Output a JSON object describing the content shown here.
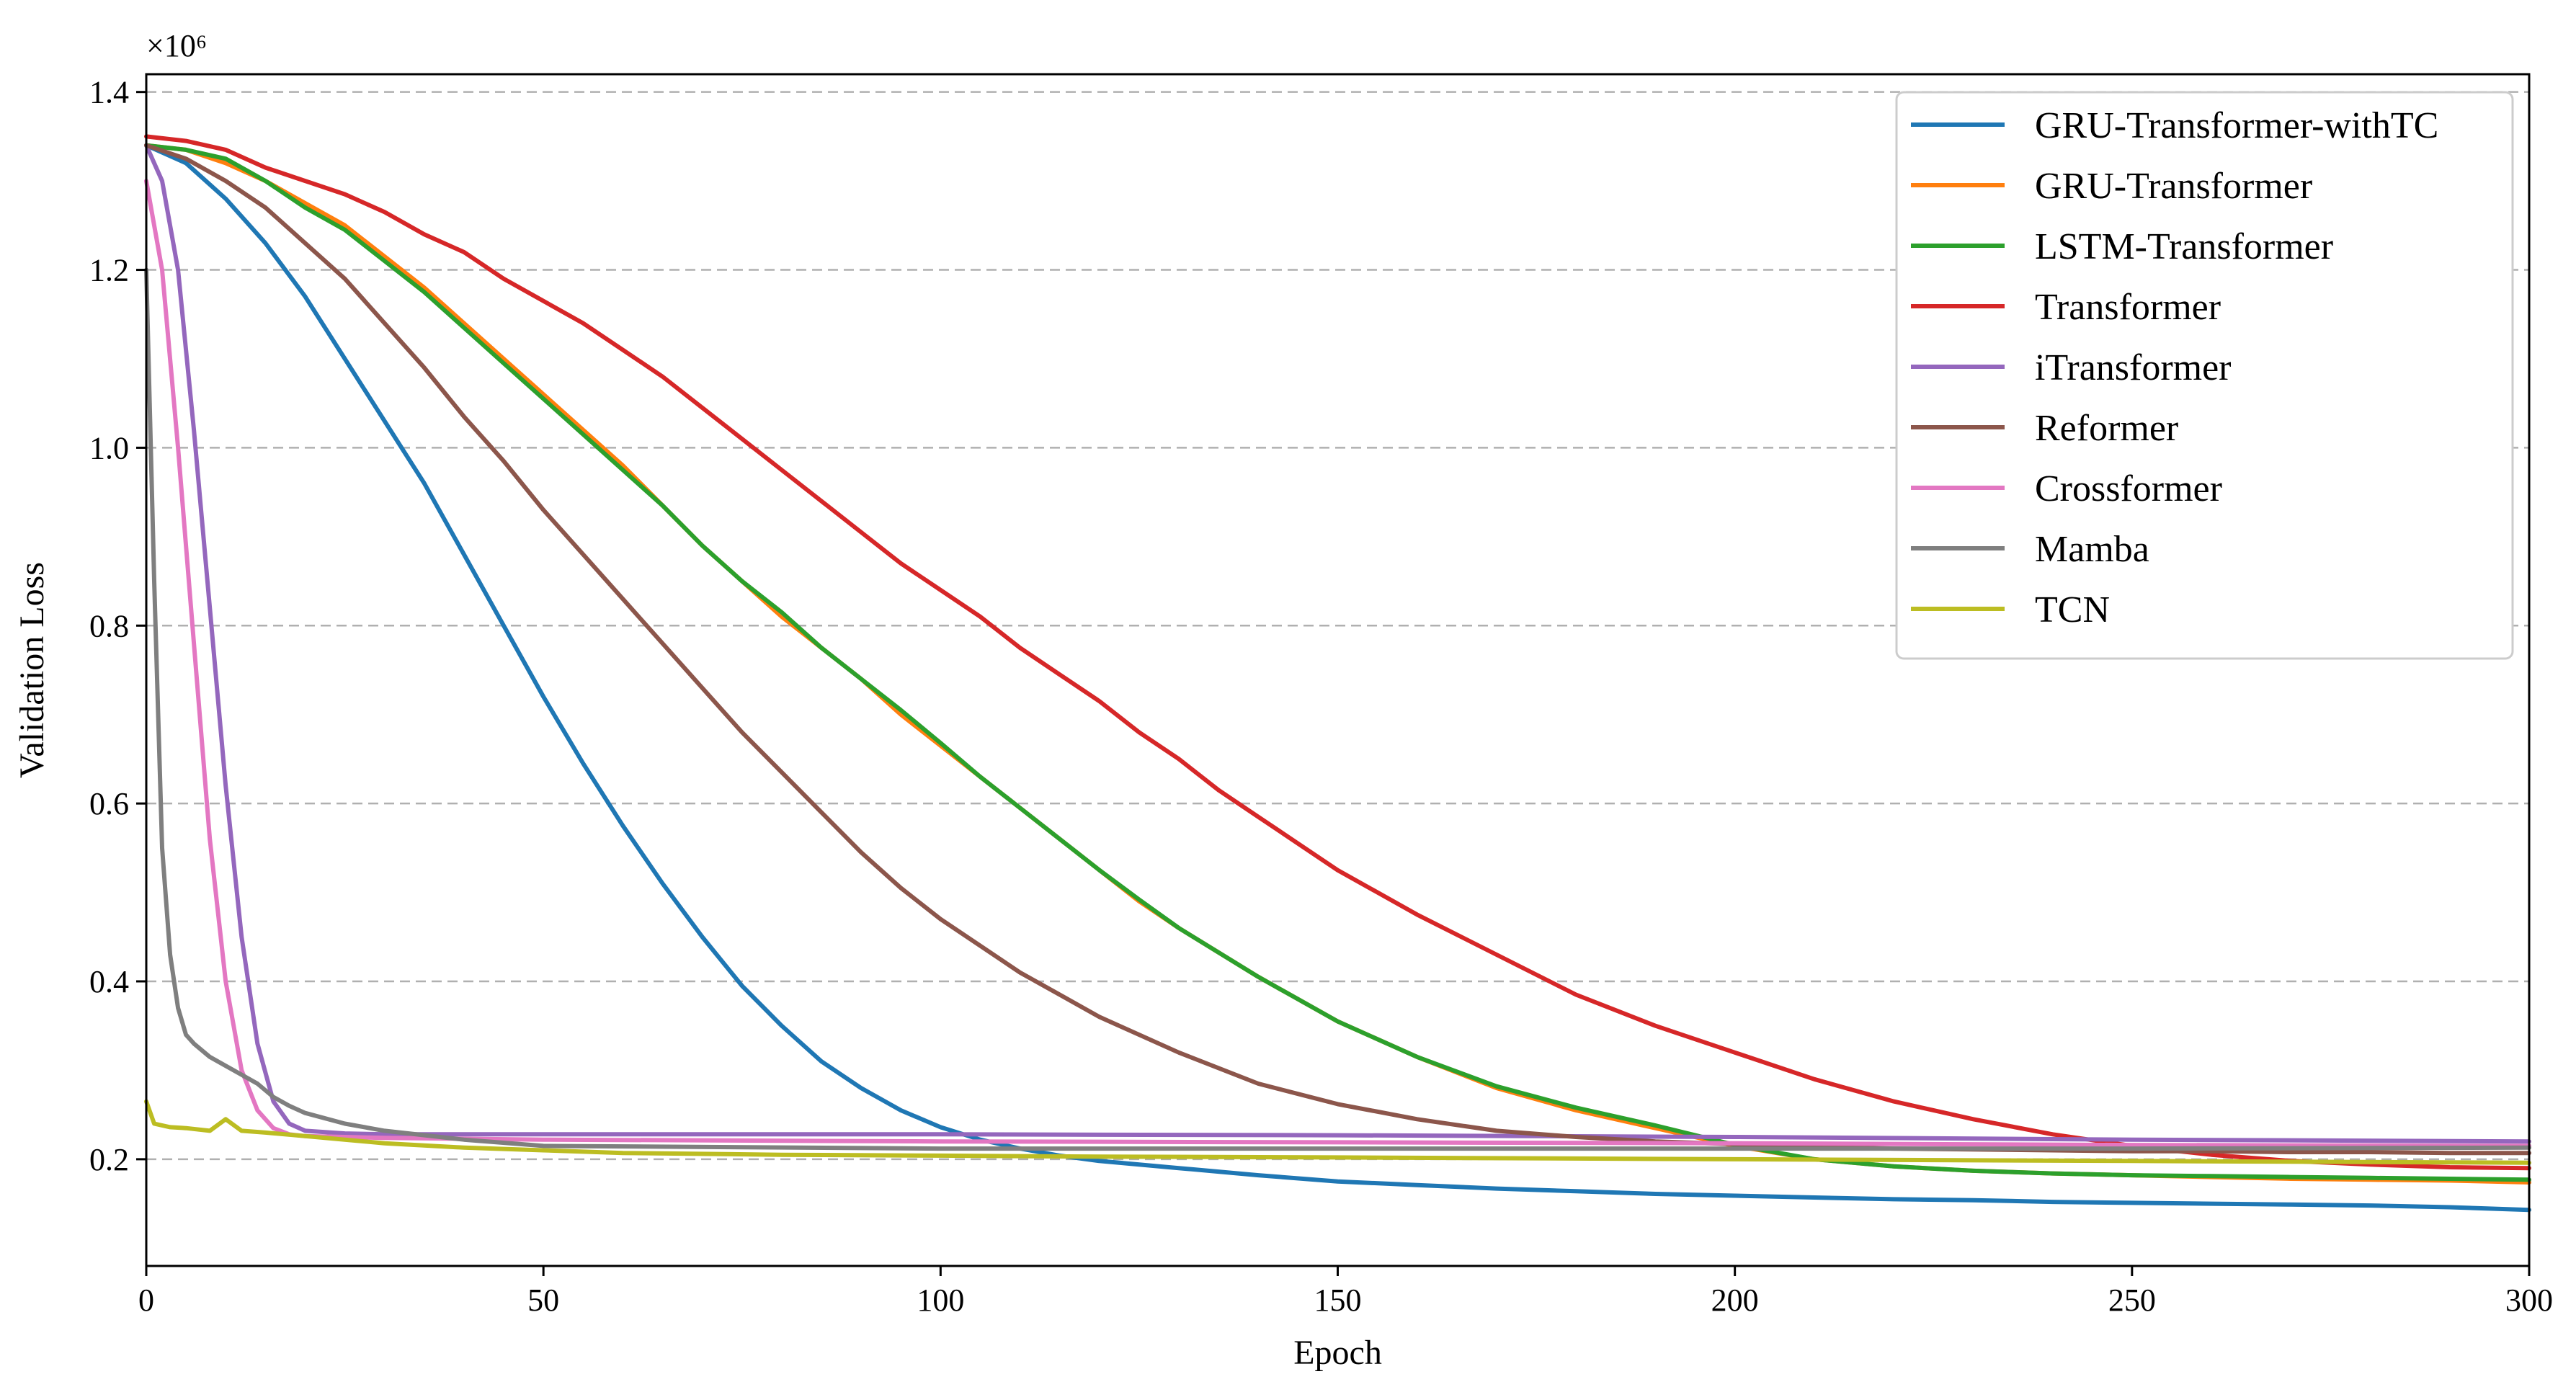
{
  "chart_data": {
    "type": "line",
    "xlabel": "Epoch",
    "ylabel": "Validation Loss",
    "y_multiplier": "×10⁶",
    "xlim": [
      0,
      300
    ],
    "ylim": [
      0.08,
      1.42
    ],
    "xticks": [
      0,
      50,
      100,
      150,
      200,
      250,
      300
    ],
    "xtick_labels": [
      "0",
      "50",
      "100",
      "150",
      "200",
      "250",
      "300"
    ],
    "yticks": [
      0.2,
      0.4,
      0.6,
      0.8,
      1.0,
      1.2,
      1.4
    ],
    "ytick_labels": [
      "0.2",
      "0.4",
      "0.6",
      "0.8",
      "1.0",
      "1.2",
      "1.4"
    ],
    "grid": "horizontal-dashed",
    "legend_position": "top-right",
    "series": [
      {
        "name": "GRU-Transformer-withTC",
        "color": "#1f77b4",
        "x": [
          0,
          5,
          10,
          15,
          20,
          25,
          30,
          35,
          40,
          45,
          50,
          55,
          60,
          65,
          70,
          75,
          80,
          85,
          90,
          95,
          100,
          105,
          110,
          115,
          120,
          130,
          140,
          150,
          160,
          170,
          180,
          190,
          200,
          210,
          220,
          230,
          240,
          250,
          260,
          270,
          280,
          290,
          300
        ],
        "y": [
          1.34,
          1.32,
          1.28,
          1.23,
          1.17,
          1.1,
          1.03,
          0.96,
          0.88,
          0.8,
          0.72,
          0.645,
          0.575,
          0.51,
          0.45,
          0.395,
          0.35,
          0.31,
          0.28,
          0.255,
          0.236,
          0.222,
          0.212,
          0.204,
          0.198,
          0.19,
          0.182,
          0.175,
          0.171,
          0.167,
          0.164,
          0.161,
          0.159,
          0.157,
          0.155,
          0.154,
          0.152,
          0.151,
          0.15,
          0.149,
          0.148,
          0.146,
          0.143
        ]
      },
      {
        "name": "GRU-Transformer",
        "color": "#ff7f0e",
        "x": [
          0,
          5,
          10,
          15,
          20,
          25,
          30,
          35,
          40,
          45,
          50,
          55,
          60,
          65,
          70,
          75,
          80,
          85,
          90,
          95,
          100,
          105,
          110,
          115,
          120,
          125,
          130,
          140,
          150,
          160,
          170,
          180,
          190,
          200,
          210,
          220,
          230,
          240,
          250,
          260,
          270,
          280,
          290,
          300
        ],
        "y": [
          1.34,
          1.335,
          1.32,
          1.3,
          1.275,
          1.25,
          1.215,
          1.18,
          1.14,
          1.1,
          1.06,
          1.02,
          0.98,
          0.935,
          0.89,
          0.85,
          0.81,
          0.775,
          0.74,
          0.7,
          0.665,
          0.63,
          0.595,
          0.56,
          0.525,
          0.49,
          0.46,
          0.405,
          0.355,
          0.315,
          0.28,
          0.255,
          0.235,
          0.215,
          0.2,
          0.192,
          0.187,
          0.184,
          0.182,
          0.18,
          0.178,
          0.177,
          0.176,
          0.174
        ]
      },
      {
        "name": "LSTM-Transformer",
        "color": "#2ca02c",
        "x": [
          0,
          5,
          10,
          15,
          20,
          25,
          30,
          35,
          40,
          45,
          50,
          55,
          60,
          65,
          70,
          75,
          80,
          85,
          90,
          95,
          100,
          105,
          110,
          115,
          120,
          125,
          130,
          140,
          150,
          160,
          170,
          180,
          190,
          200,
          210,
          220,
          230,
          240,
          250,
          260,
          270,
          280,
          290,
          300
        ],
        "y": [
          1.34,
          1.335,
          1.325,
          1.3,
          1.27,
          1.245,
          1.21,
          1.175,
          1.135,
          1.095,
          1.055,
          1.015,
          0.975,
          0.935,
          0.89,
          0.85,
          0.815,
          0.775,
          0.74,
          0.705,
          0.668,
          0.63,
          0.595,
          0.56,
          0.525,
          0.492,
          0.46,
          0.405,
          0.355,
          0.315,
          0.282,
          0.258,
          0.238,
          0.216,
          0.2,
          0.192,
          0.187,
          0.184,
          0.182,
          0.181,
          0.18,
          0.179,
          0.178,
          0.177
        ]
      },
      {
        "name": "Transformer",
        "color": "#d62728",
        "x": [
          0,
          5,
          10,
          15,
          20,
          25,
          30,
          35,
          40,
          45,
          50,
          55,
          60,
          65,
          70,
          75,
          80,
          85,
          90,
          95,
          100,
          105,
          110,
          115,
          120,
          125,
          130,
          135,
          140,
          145,
          150,
          160,
          170,
          180,
          190,
          200,
          210,
          220,
          230,
          240,
          250,
          260,
          270,
          280,
          290,
          300
        ],
        "y": [
          1.35,
          1.345,
          1.335,
          1.315,
          1.3,
          1.285,
          1.265,
          1.24,
          1.22,
          1.19,
          1.165,
          1.14,
          1.11,
          1.08,
          1.045,
          1.01,
          0.975,
          0.94,
          0.905,
          0.87,
          0.84,
          0.81,
          0.775,
          0.745,
          0.715,
          0.68,
          0.65,
          0.615,
          0.585,
          0.555,
          0.525,
          0.475,
          0.43,
          0.385,
          0.35,
          0.32,
          0.29,
          0.265,
          0.245,
          0.228,
          0.215,
          0.205,
          0.198,
          0.194,
          0.191,
          0.19
        ]
      },
      {
        "name": "iTransformer",
        "color": "#9467bd",
        "x": [
          0,
          2,
          4,
          6,
          8,
          10,
          12,
          14,
          16,
          18,
          20,
          25,
          30,
          50,
          100,
          150,
          200,
          250,
          300
        ],
        "y": [
          1.34,
          1.3,
          1.2,
          1.02,
          0.82,
          0.62,
          0.45,
          0.33,
          0.265,
          0.24,
          0.232,
          0.229,
          0.228,
          0.228,
          0.228,
          0.227,
          0.225,
          0.222,
          0.22
        ]
      },
      {
        "name": "Reformer",
        "color": "#8c564b",
        "x": [
          0,
          5,
          10,
          15,
          20,
          25,
          30,
          35,
          40,
          45,
          50,
          55,
          60,
          65,
          70,
          75,
          80,
          85,
          90,
          95,
          100,
          105,
          110,
          115,
          120,
          130,
          140,
          150,
          160,
          170,
          180,
          190,
          200,
          210,
          220,
          230,
          240,
          250,
          260,
          270,
          280,
          290,
          300
        ],
        "y": [
          1.34,
          1.325,
          1.3,
          1.27,
          1.23,
          1.19,
          1.14,
          1.09,
          1.035,
          0.985,
          0.93,
          0.88,
          0.83,
          0.78,
          0.73,
          0.68,
          0.635,
          0.59,
          0.545,
          0.505,
          0.47,
          0.44,
          0.41,
          0.385,
          0.36,
          0.32,
          0.285,
          0.262,
          0.245,
          0.232,
          0.225,
          0.22,
          0.217,
          0.214,
          0.212,
          0.211,
          0.21,
          0.209,
          0.209,
          0.208,
          0.208,
          0.207,
          0.207
        ]
      },
      {
        "name": "Crossformer",
        "color": "#e377c2",
        "x": [
          0,
          2,
          4,
          6,
          8,
          10,
          12,
          14,
          16,
          18,
          20,
          25,
          30,
          50,
          100,
          150,
          200,
          250,
          300
        ],
        "y": [
          1.3,
          1.2,
          1.0,
          0.78,
          0.56,
          0.4,
          0.3,
          0.255,
          0.235,
          0.228,
          0.226,
          0.225,
          0.224,
          0.222,
          0.22,
          0.219,
          0.218,
          0.216,
          0.215
        ]
      },
      {
        "name": "Mamba",
        "color": "#7f7f7f",
        "x": [
          0,
          1,
          2,
          3,
          4,
          5,
          6,
          8,
          10,
          12,
          14,
          16,
          18,
          20,
          25,
          30,
          40,
          50,
          100,
          150,
          200,
          250,
          300
        ],
        "y": [
          1.2,
          0.85,
          0.55,
          0.43,
          0.37,
          0.34,
          0.33,
          0.315,
          0.305,
          0.295,
          0.285,
          0.27,
          0.26,
          0.252,
          0.24,
          0.232,
          0.222,
          0.215,
          0.212,
          0.212,
          0.212,
          0.212,
          0.213
        ]
      },
      {
        "name": "TCN",
        "color": "#bcbd22",
        "x": [
          0,
          1,
          3,
          5,
          8,
          10,
          12,
          15,
          20,
          25,
          30,
          40,
          50,
          60,
          80,
          100,
          120,
          150,
          200,
          250,
          300
        ],
        "y": [
          0.265,
          0.24,
          0.236,
          0.235,
          0.232,
          0.245,
          0.232,
          0.23,
          0.226,
          0.222,
          0.218,
          0.213,
          0.21,
          0.207,
          0.205,
          0.204,
          0.203,
          0.202,
          0.2,
          0.198,
          0.196
        ]
      }
    ]
  }
}
